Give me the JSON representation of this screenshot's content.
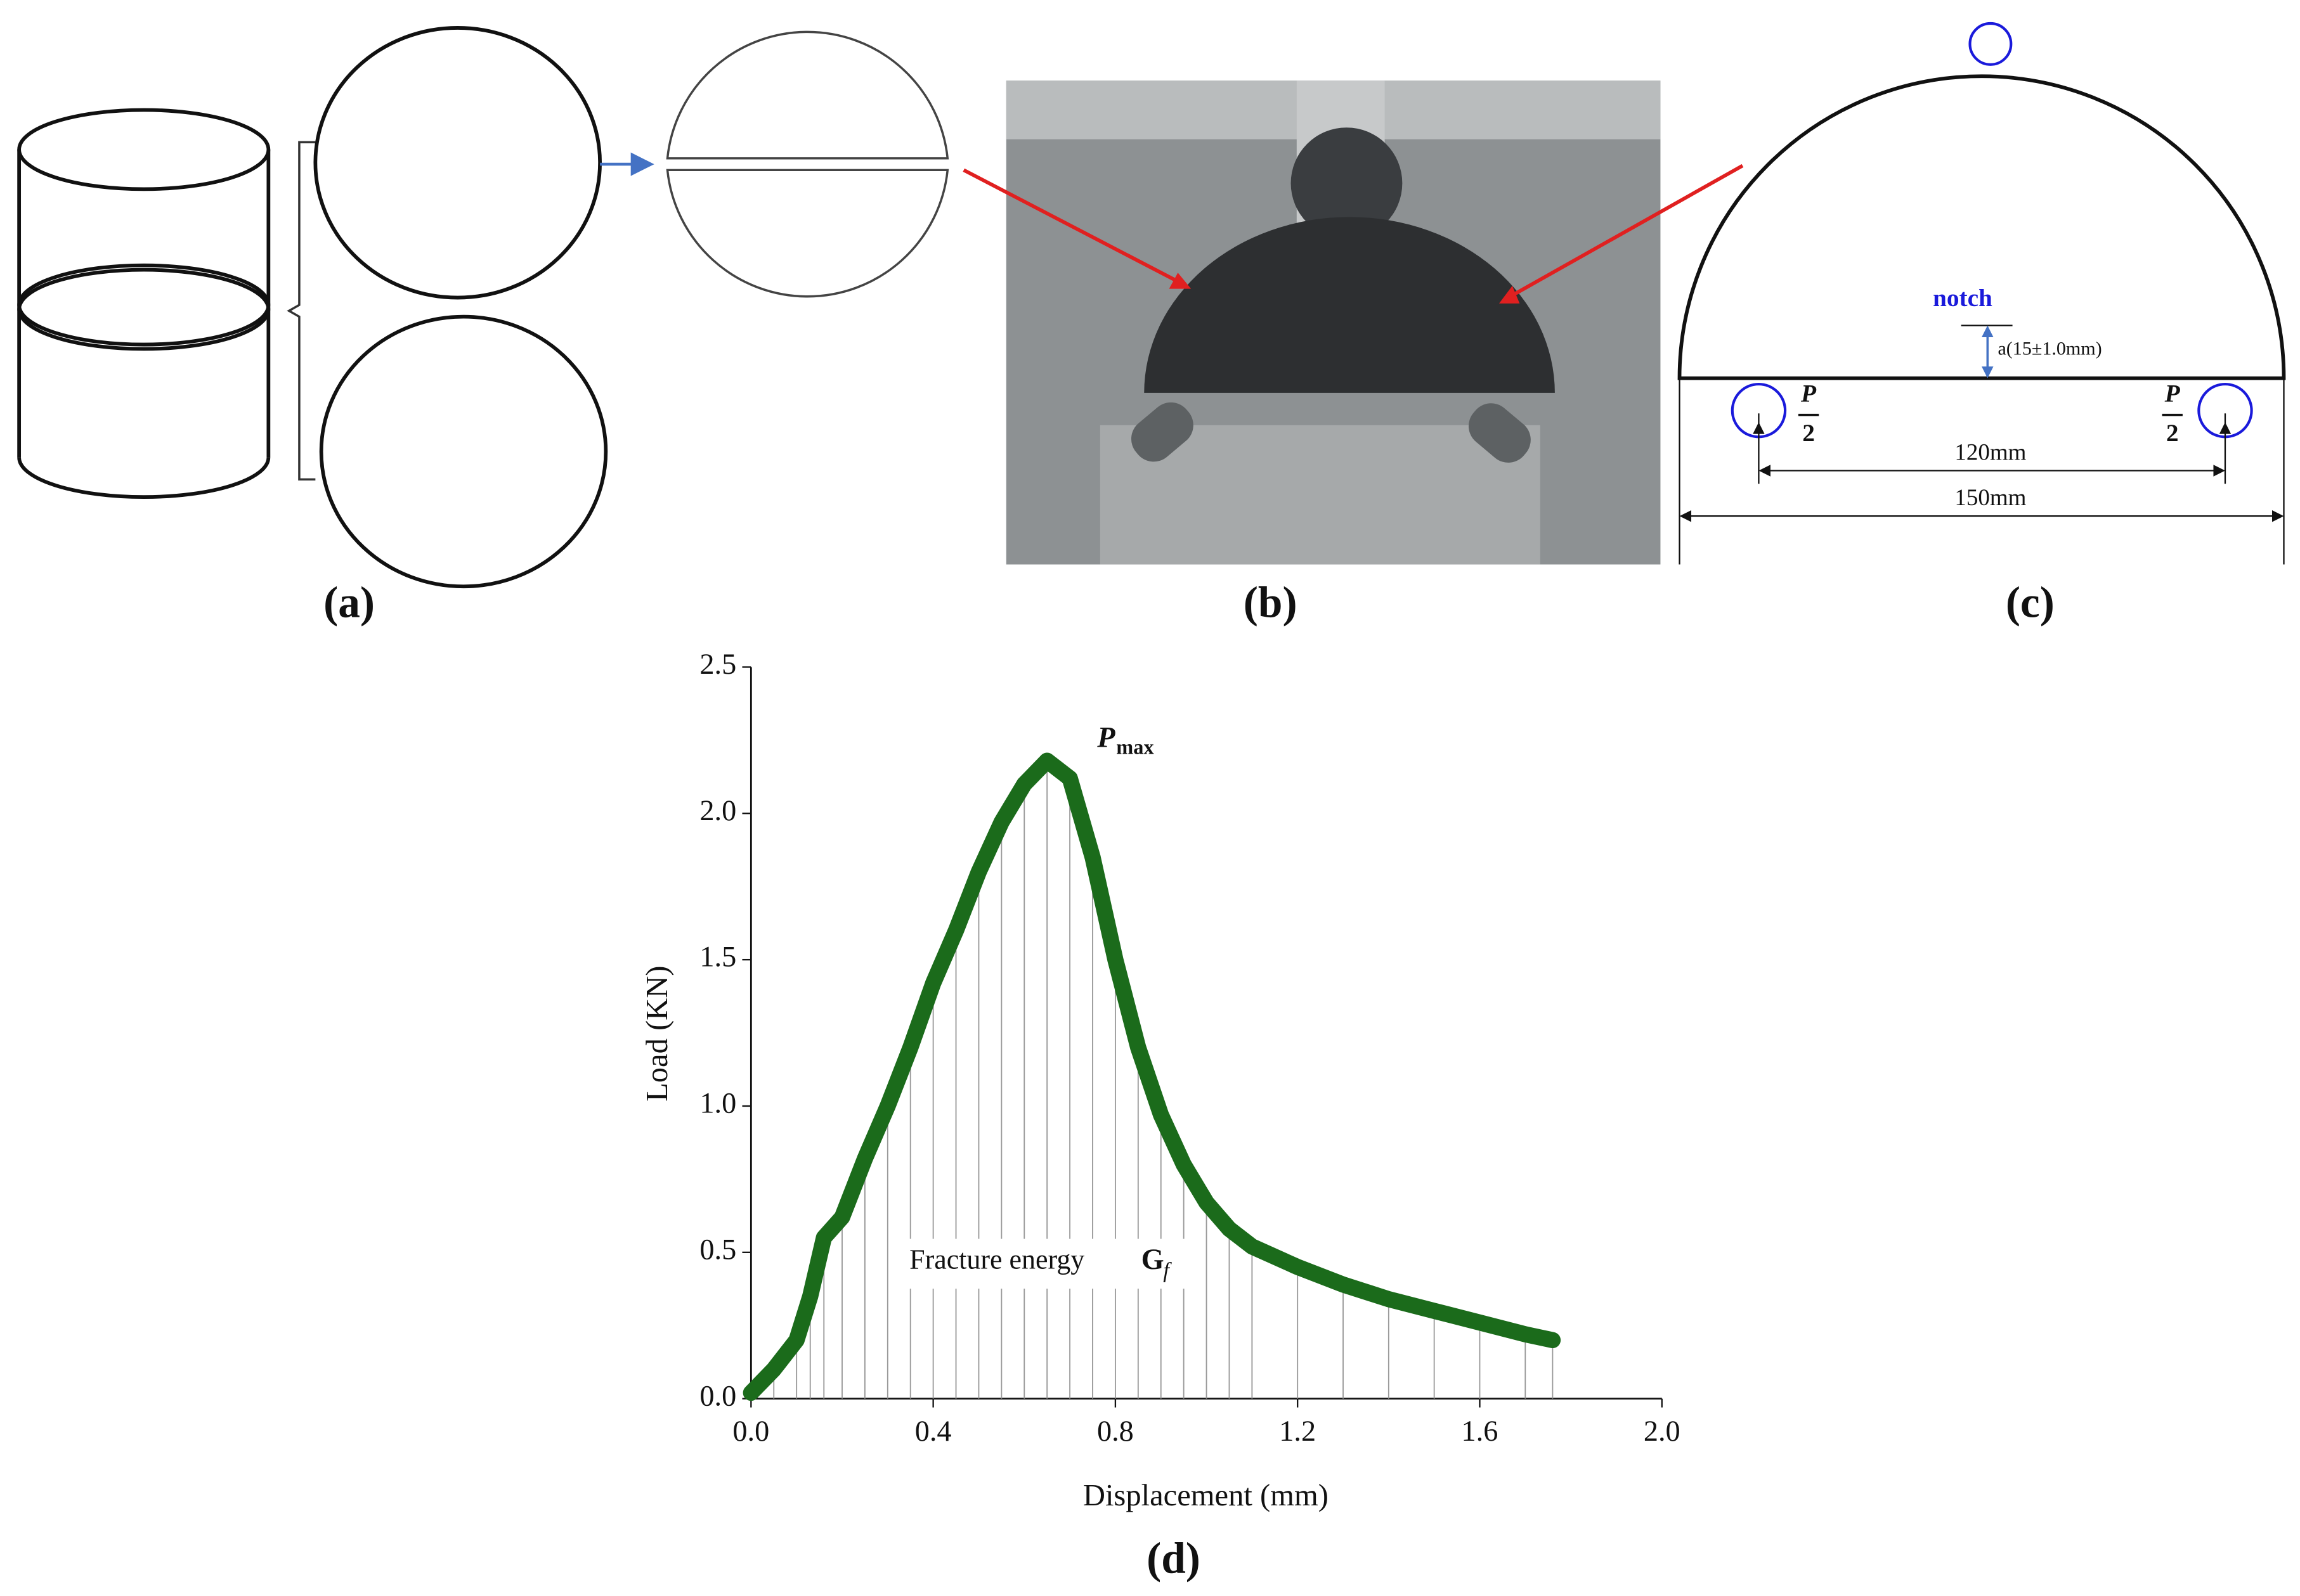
{
  "panels": {
    "a": {
      "label": "(a)"
    },
    "b": {
      "label": "(b)"
    },
    "c": {
      "label": "(c)",
      "notch": "notch",
      "notch_depth": "a(15±1.0mm)",
      "load_left": {
        "p": "P",
        "d": "2"
      },
      "load_right": {
        "p": "P",
        "d": "2"
      },
      "span": "120mm",
      "diameter": "150mm"
    },
    "d": {
      "label": "(d)"
    }
  },
  "chart_data": {
    "type": "line",
    "x_label": "Displacement (mm)",
    "y_label": "Load (KN)",
    "x": [
      0,
      0.05,
      0.1,
      0.13,
      0.16,
      0.2,
      0.25,
      0.3,
      0.35,
      0.4,
      0.45,
      0.5,
      0.55,
      0.6,
      0.65,
      0.7,
      0.75,
      0.8,
      0.85,
      0.9,
      0.95,
      1.0,
      1.05,
      1.1,
      1.2,
      1.3,
      1.4,
      1.5,
      1.6,
      1.7,
      1.76
    ],
    "series": [
      {
        "color": "#1b6b1b",
        "values": [
          0.02,
          0.1,
          0.2,
          0.35,
          0.55,
          0.62,
          0.82,
          1.0,
          1.2,
          1.42,
          1.6,
          1.8,
          1.97,
          2.1,
          2.18,
          2.12,
          1.85,
          1.5,
          1.2,
          0.97,
          0.8,
          0.67,
          0.58,
          0.52,
          0.45,
          0.39,
          0.34,
          0.3,
          0.26,
          0.22,
          0.2
        ]
      }
    ],
    "xlim": [
      0,
      2
    ],
    "ylim": [
      0,
      2.5
    ],
    "xticks": [
      {
        "value": 0,
        "label": "0.0"
      },
      0.4,
      0.8,
      1.2,
      1.6,
      {
        "value": 2,
        "label": "2.0"
      }
    ],
    "yticks": [
      {
        "value": 0,
        "label": "0.0"
      },
      0.5,
      {
        "value": 1,
        "label": "1.0"
      },
      1.5,
      {
        "value": 2,
        "label": "2.0"
      },
      2.5
    ],
    "annotations": [
      {
        "text": "P",
        "subscript": "max"
      },
      {
        "text": "Fracture energy"
      },
      {
        "text": "G",
        "subscript": "f"
      }
    ]
  }
}
